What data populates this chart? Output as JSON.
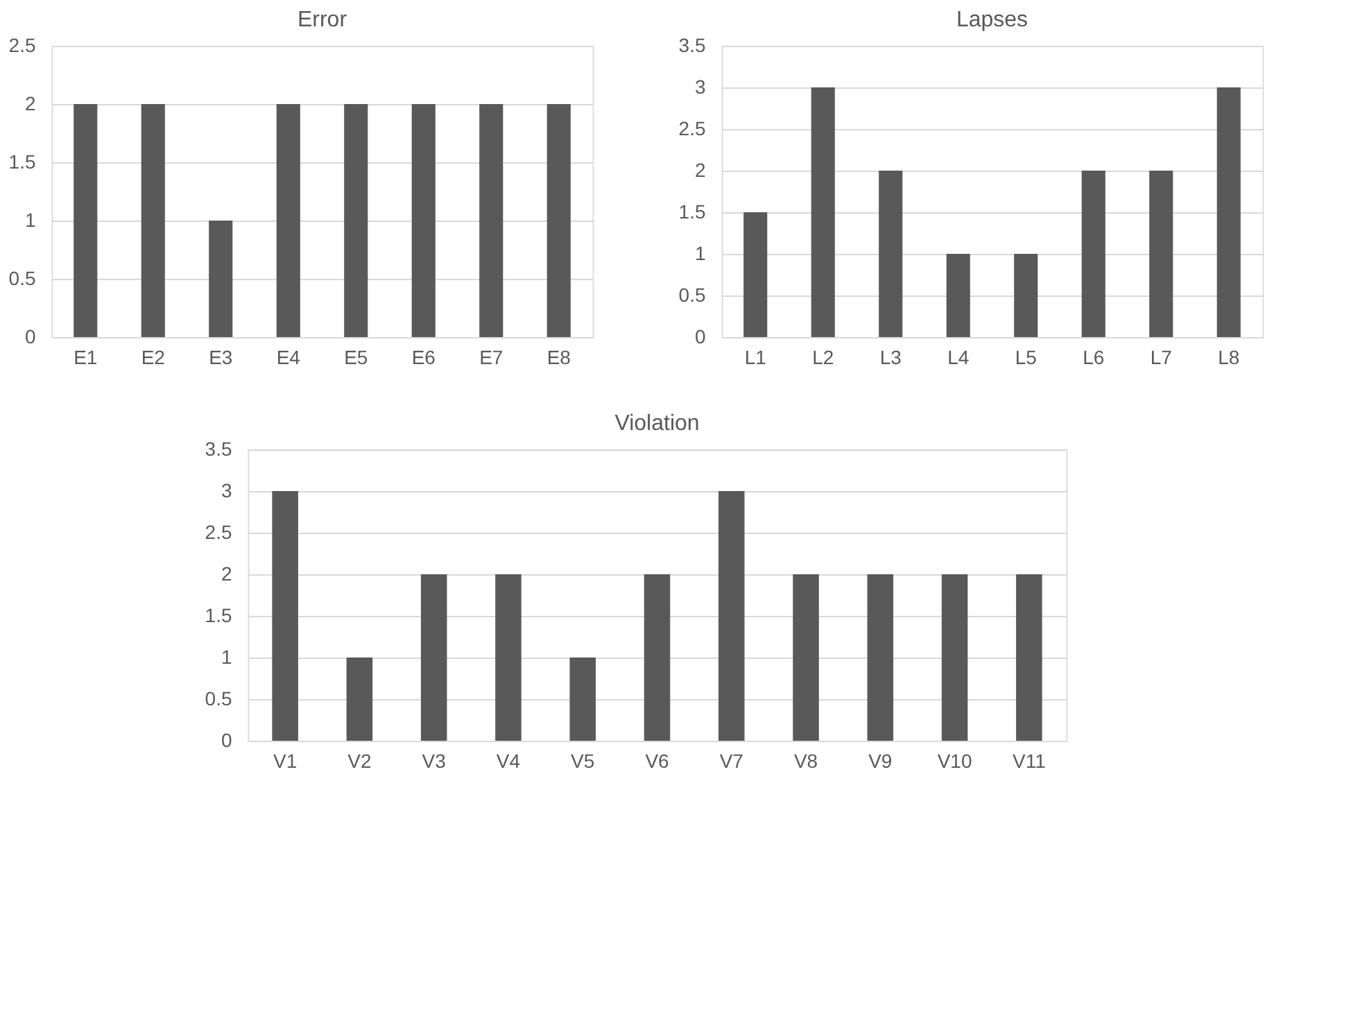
{
  "chart_data": [
    {
      "type": "bar",
      "title": "Error",
      "categories": [
        "E1",
        "E2",
        "E3",
        "E4",
        "E5",
        "E6",
        "E7",
        "E8"
      ],
      "values": [
        2,
        2,
        1,
        2,
        2,
        2,
        2,
        2
      ],
      "color": "#595959",
      "ylim": [
        0,
        2.5
      ],
      "yticks": [
        0,
        0.5,
        1,
        1.5,
        2,
        2.5
      ],
      "grid": "y"
    },
    {
      "type": "bar",
      "title": "Lapses",
      "categories": [
        "L1",
        "L2",
        "L3",
        "L4",
        "L5",
        "L6",
        "L7",
        "L8"
      ],
      "values": [
        1.5,
        3,
        2,
        1,
        1,
        2,
        2,
        3
      ],
      "color": "#595959",
      "ylim": [
        0,
        3.5
      ],
      "yticks": [
        0,
        0.5,
        1,
        1.5,
        2,
        2.5,
        3,
        3.5
      ],
      "grid": "y"
    },
    {
      "type": "bar",
      "title": "Violation",
      "categories": [
        "V1",
        "V2",
        "V3",
        "V4",
        "V5",
        "V6",
        "V7",
        "V8",
        "V9",
        "V10",
        "V11"
      ],
      "values": [
        3,
        1,
        2,
        2,
        1,
        2,
        3,
        2,
        2,
        2,
        2
      ],
      "color": "#595959",
      "ylim": [
        0,
        3.5
      ],
      "yticks": [
        0,
        0.5,
        1,
        1.5,
        2,
        2.5,
        3,
        3.5
      ],
      "grid": "y"
    }
  ]
}
